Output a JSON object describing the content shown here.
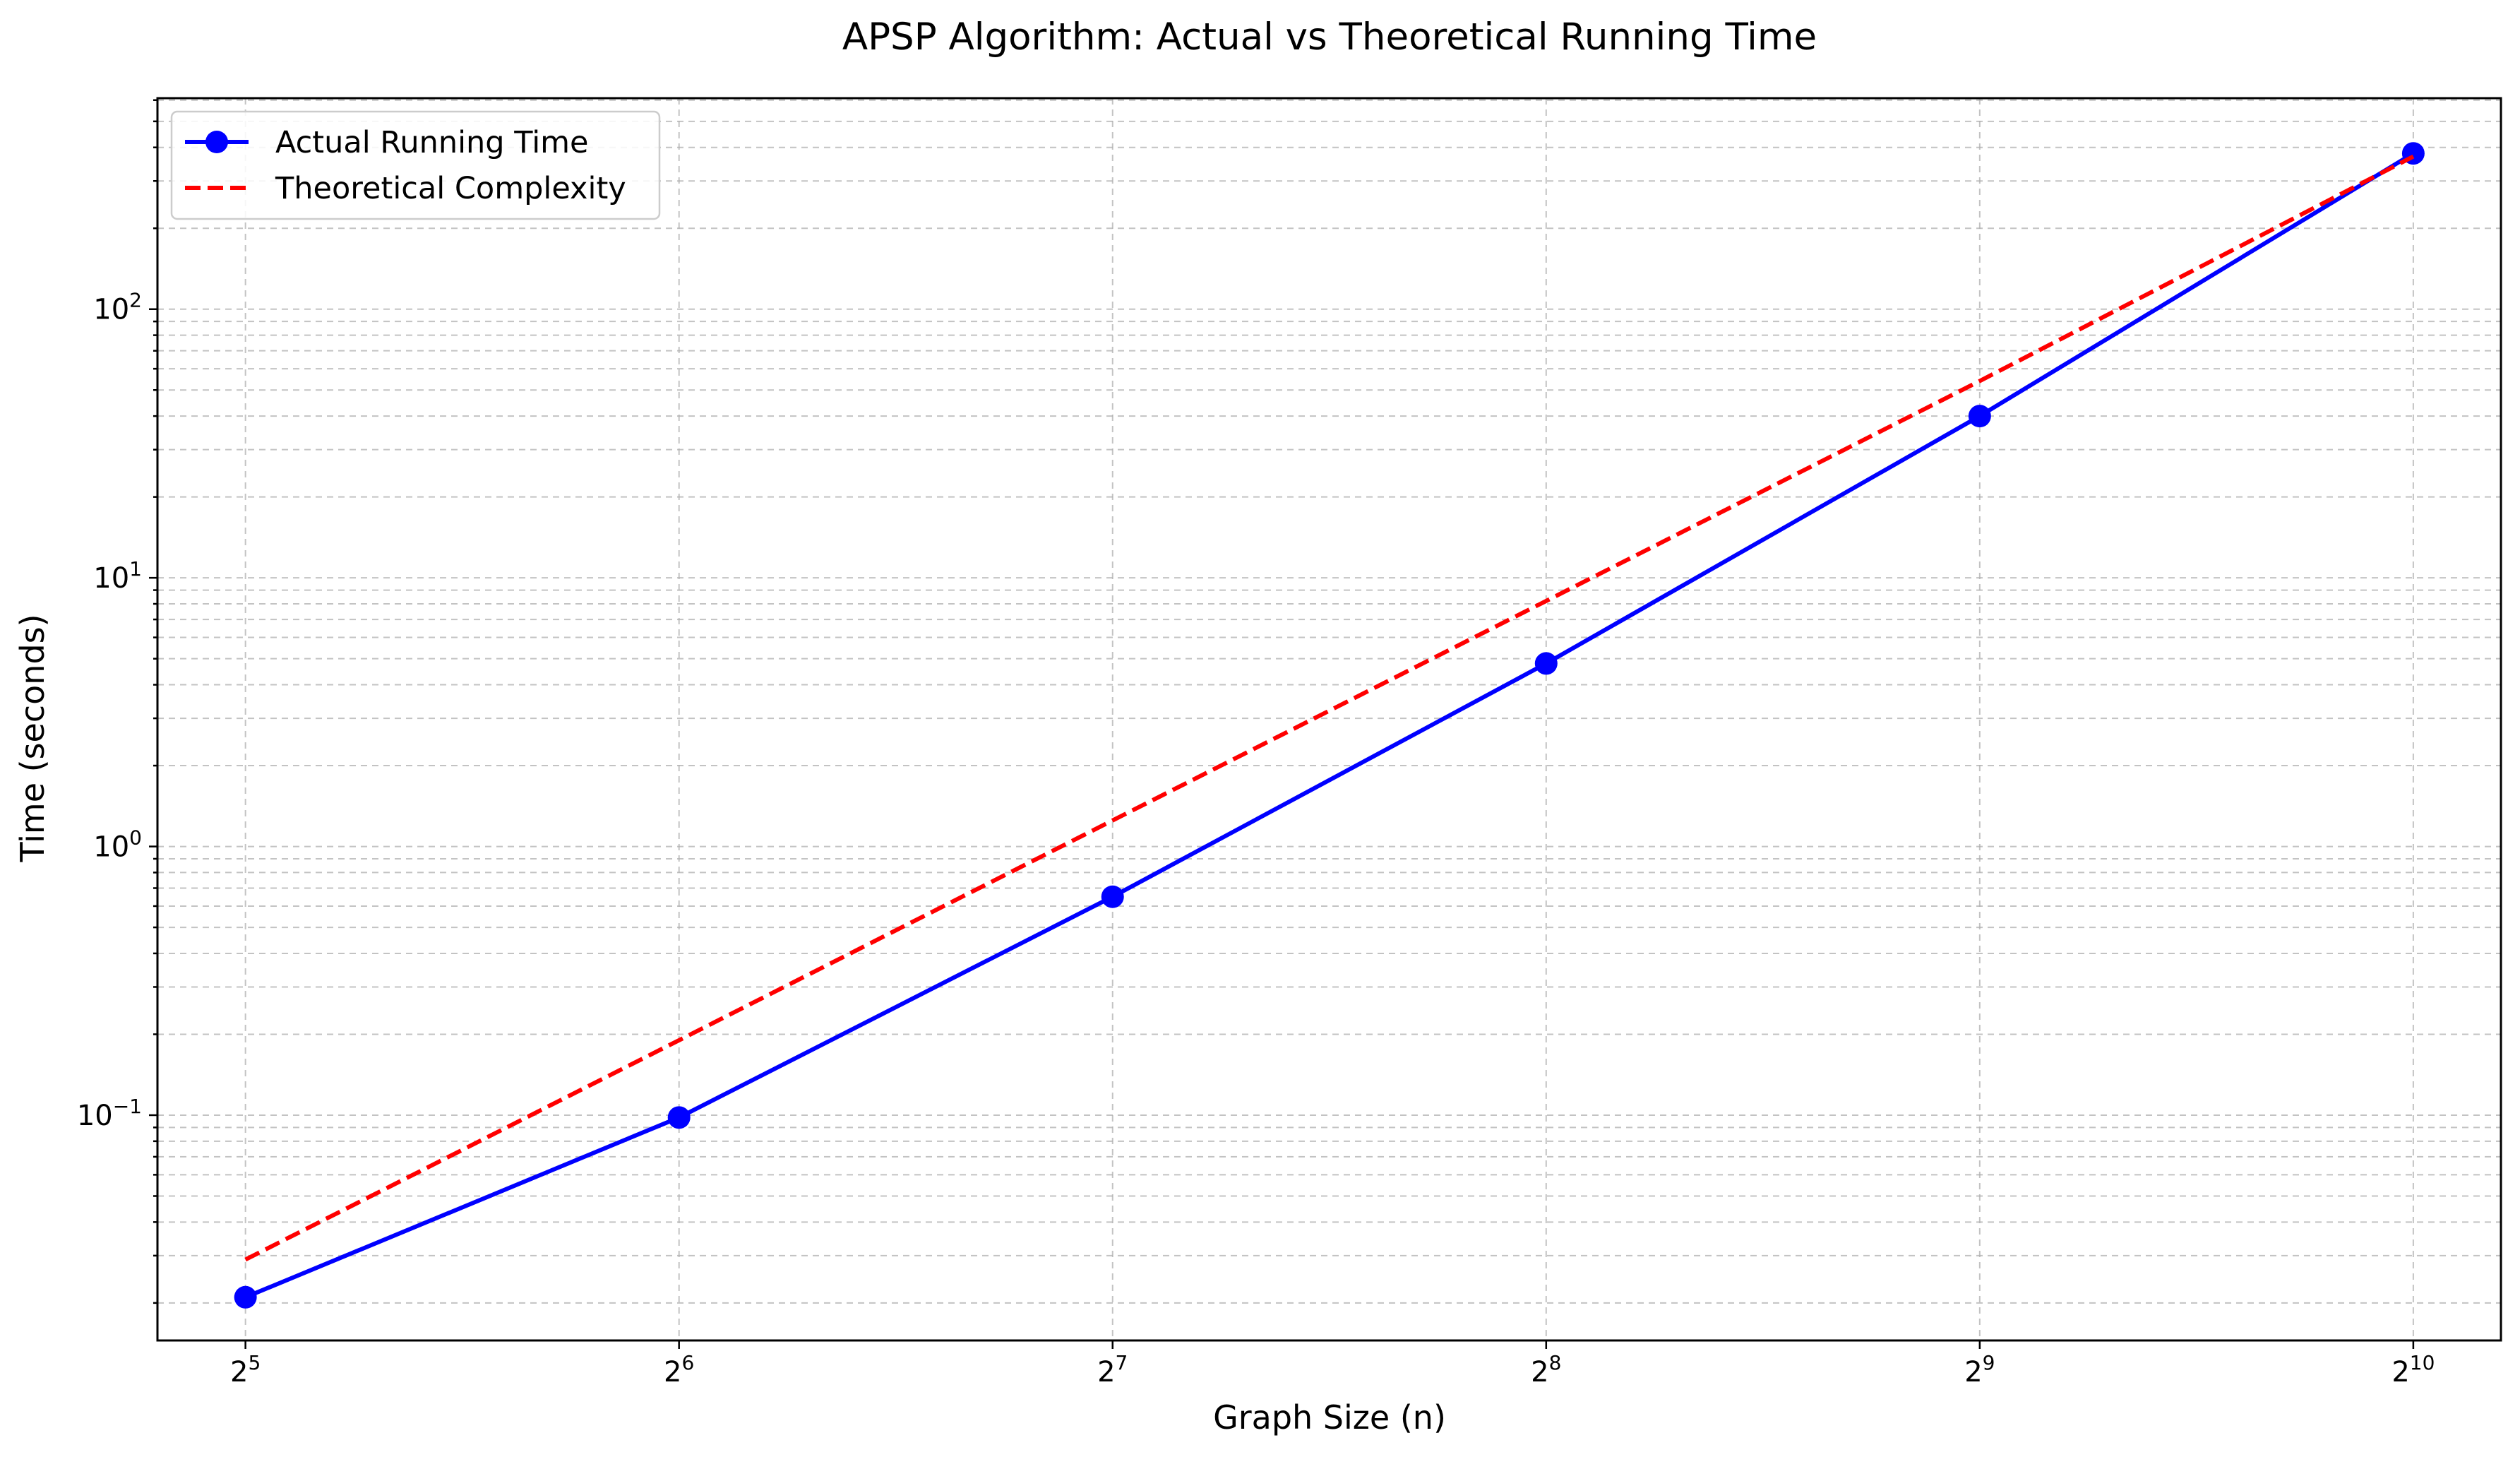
{
  "chart_data": {
    "type": "line",
    "title": "APSP Algorithm: Actual vs Theoretical Running Time",
    "xlabel": "Graph Size (n)",
    "ylabel": "Time (seconds)",
    "x_scale": "log2",
    "y_scale": "log10",
    "x": [
      32,
      64,
      128,
      256,
      512,
      1024
    ],
    "xlim": [
      27.8,
      1178
    ],
    "ylim": [
      0.0145,
      610
    ],
    "x_ticks": [
      {
        "base": "2",
        "exp": "5"
      },
      {
        "base": "2",
        "exp": "6"
      },
      {
        "base": "2",
        "exp": "7"
      },
      {
        "base": "2",
        "exp": "8"
      },
      {
        "base": "2",
        "exp": "9"
      },
      {
        "base": "2",
        "exp": "10"
      }
    ],
    "y_ticks": [
      {
        "value": 0.1,
        "base": "10",
        "exp": "−1"
      },
      {
        "value": 1,
        "base": "10",
        "exp": "0"
      },
      {
        "value": 10,
        "base": "10",
        "exp": "1"
      },
      {
        "value": 100,
        "base": "10",
        "exp": "2"
      }
    ],
    "grid": true,
    "legend_position": "upper-left",
    "series": [
      {
        "name": "Actual Running Time",
        "values": [
          0.021,
          0.098,
          0.65,
          4.8,
          40,
          380
        ],
        "color": "#0000ff",
        "style": "solid",
        "marker": "circle"
      },
      {
        "name": "Theoretical Complexity",
        "values": [
          0.029,
          0.19,
          1.25,
          8.2,
          54,
          370
        ],
        "color": "#ff0000",
        "style": "dashed",
        "marker": "none"
      }
    ]
  }
}
